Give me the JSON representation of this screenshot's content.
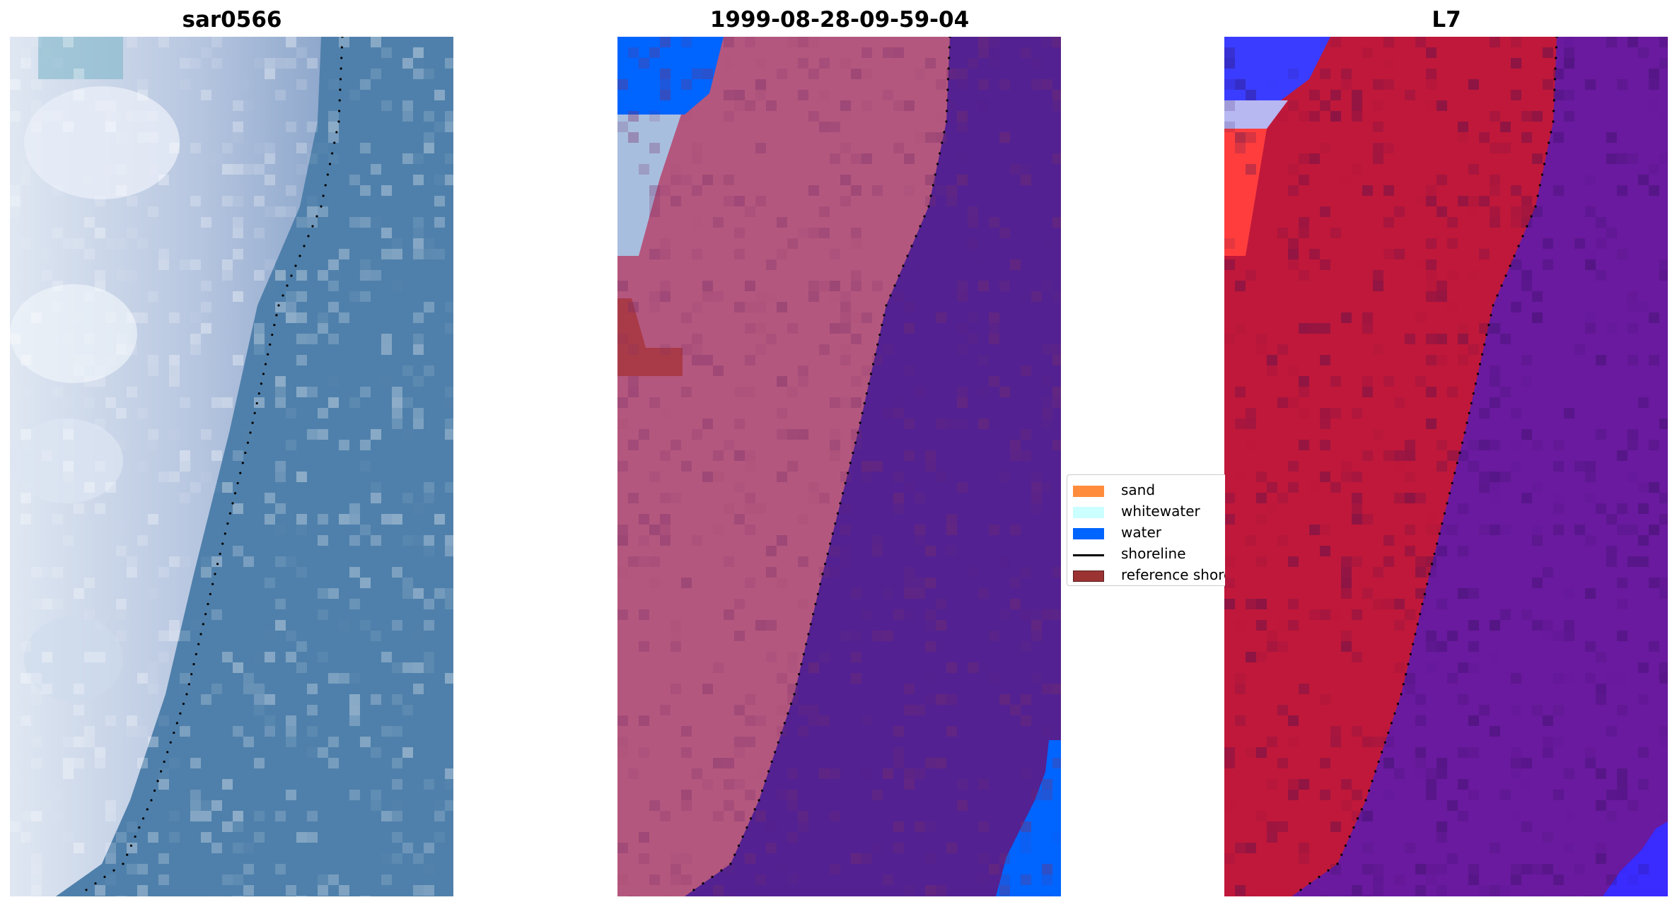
{
  "panels": [
    {
      "title": "sar0566",
      "style": "rgb",
      "base_color": "#4f80ab"
    },
    {
      "title": "1999-08-28-09-59-04",
      "style": "classified",
      "base_color": "#532191"
    },
    {
      "title": "L7",
      "style": "index",
      "base_color": "#6a1a9f"
    }
  ],
  "legend": {
    "items": [
      {
        "label": "sand",
        "kind": "patch",
        "color": "#ff8c3c"
      },
      {
        "label": "whitewater",
        "kind": "patch",
        "color": "#ccffff"
      },
      {
        "label": "water",
        "kind": "patch",
        "color": "#0064ff"
      },
      {
        "label": "shoreline",
        "kind": "line",
        "color": "#000000"
      },
      {
        "label": "reference shoreline",
        "kind": "patch",
        "color": "#9c3333"
      }
    ]
  },
  "colors": {
    "sand_tone": "#b4577e",
    "water_tone": "#532191",
    "index_land": "#c0183a",
    "index_water": "#6a1a9f",
    "shoreline_dots": "#000000"
  }
}
